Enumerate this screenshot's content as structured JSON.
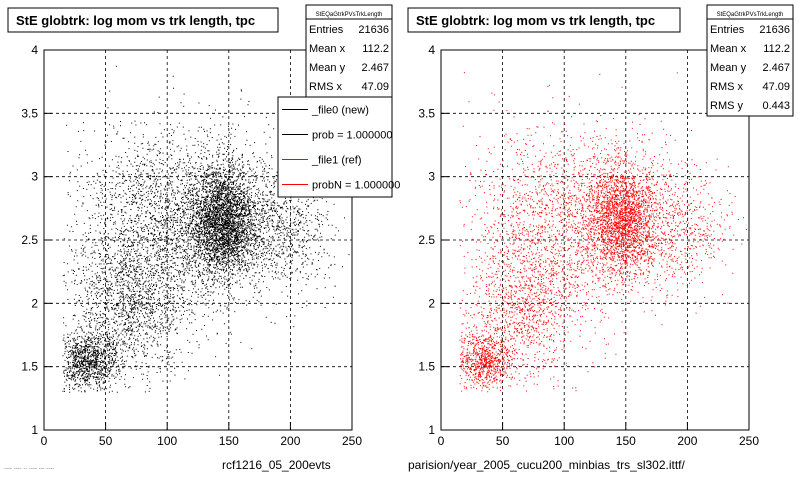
{
  "footer": {
    "left_caption": "rcf1216_05_200evts",
    "right_caption": "parision/year_2005_cucu200_minbias_trs_sl302.ittf/",
    "corner_text": "---- ---- -- ---- --- ----"
  },
  "chart_data": [
    {
      "type": "scatter",
      "title": "StE globtrk: log mom vs trk length, tpc",
      "xlabel": "",
      "ylabel": "",
      "xlim": [
        0,
        250
      ],
      "ylim": [
        1,
        4
      ],
      "xticks": [
        "0",
        "50",
        "100",
        "150",
        "200",
        "250"
      ],
      "yticks": [
        "1",
        "1.5",
        "2",
        "2.5",
        "3",
        "3.5",
        "4"
      ],
      "grid": true,
      "point_color": "#000000",
      "density_model": {
        "clusters": [
          {
            "x": 145,
            "y": 2.65,
            "sx": 14,
            "sy": 0.22,
            "weight": 0.33
          },
          {
            "x": 105,
            "y": 2.7,
            "sx": 40,
            "sy": 0.35,
            "weight": 0.27
          },
          {
            "x": 70,
            "y": 2.0,
            "sx": 25,
            "sy": 0.3,
            "weight": 0.18
          },
          {
            "x": 35,
            "y": 1.55,
            "sx": 12,
            "sy": 0.12,
            "weight": 0.12
          },
          {
            "x": 190,
            "y": 2.6,
            "sx": 22,
            "sy": 0.25,
            "weight": 0.1
          }
        ],
        "n_points": 9000
      },
      "stats": {
        "name": "StEQaGtrkPVsTrkLength",
        "rows": [
          {
            "label": "Entries",
            "value": "21636"
          },
          {
            "label": "Mean x",
            "value": "112.2"
          },
          {
            "label": "Mean y",
            "value": "2.467"
          },
          {
            "label": "RMS x",
            "value": "47.09"
          }
        ]
      },
      "legend": {
        "placement": "top-right",
        "entries": [
          {
            "label": "_file0 (new)",
            "color": "#000000"
          },
          {
            "label": "prob = 1.000000",
            "color": "#000000"
          },
          {
            "label": "_file1 (ref)",
            "color": "#ff0000"
          },
          {
            "label": "probN = 1.000000",
            "color": "#ff0000"
          }
        ]
      }
    },
    {
      "type": "scatter",
      "title": "StE globtrk: log mom vs trk length, tpc",
      "xlabel": "",
      "ylabel": "",
      "xlim": [
        0,
        250
      ],
      "ylim": [
        1,
        4
      ],
      "xticks": [
        "0",
        "50",
        "100",
        "150",
        "200",
        "250"
      ],
      "yticks": [
        "1",
        "1.5",
        "2",
        "2.5",
        "3",
        "3.5",
        "4"
      ],
      "grid": true,
      "point_color": "#ff0000",
      "density_model": {
        "clusters": [
          {
            "x": 145,
            "y": 2.65,
            "sx": 14,
            "sy": 0.22,
            "weight": 0.33
          },
          {
            "x": 105,
            "y": 2.7,
            "sx": 40,
            "sy": 0.35,
            "weight": 0.27
          },
          {
            "x": 70,
            "y": 2.0,
            "sx": 25,
            "sy": 0.3,
            "weight": 0.18
          },
          {
            "x": 35,
            "y": 1.55,
            "sx": 12,
            "sy": 0.12,
            "weight": 0.12
          },
          {
            "x": 190,
            "y": 2.6,
            "sx": 22,
            "sy": 0.25,
            "weight": 0.1
          }
        ],
        "n_points": 6500
      },
      "stats": {
        "name": "StEQaGtrkPVsTrkLength",
        "rows": [
          {
            "label": "Entries",
            "value": "21636"
          },
          {
            "label": "Mean x",
            "value": "112.2"
          },
          {
            "label": "Mean y",
            "value": "2.467"
          },
          {
            "label": "RMS x",
            "value": "47.09"
          },
          {
            "label": "RMS y",
            "value": "0.443"
          }
        ]
      }
    }
  ]
}
